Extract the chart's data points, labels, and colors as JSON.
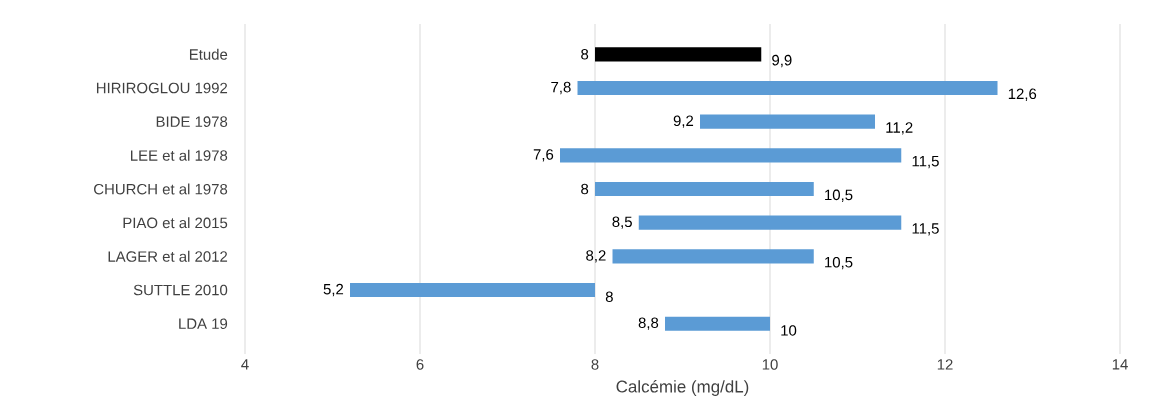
{
  "chart_data": {
    "type": "bar",
    "orientation": "horizontal",
    "xlabel": "Calcémie (mg/dL)",
    "categories": [
      "Etude",
      "HIRIROGLOU 1992",
      "BIDE 1978",
      "LEE et al 1978",
      "CHURCH et al 1978",
      "PIAO et al 2015",
      "LAGER et al 2012",
      "SUTTLE 2010",
      "LDA 19"
    ],
    "base": [
      8,
      7.8,
      9.2,
      7.6,
      8,
      8.5,
      8.2,
      5.2,
      8.8
    ],
    "values": [
      1.9,
      4.8,
      2.0,
      3.9,
      2.5,
      3.0,
      2.3,
      2.8,
      1.2
    ],
    "colors": [
      "#000000",
      "#5b9bd5",
      "#5b9bd5",
      "#5b9bd5",
      "#5b9bd5",
      "#5b9bd5",
      "#5b9bd5",
      "#5b9bd5",
      "#5b9bd5"
    ],
    "xlim": [
      4,
      14
    ],
    "xticks": [
      4,
      6,
      8,
      10,
      12,
      14
    ],
    "grid": "x",
    "annotations": [
      "8",
      "9,9",
      "7,8",
      "12,6",
      "9,2",
      "11,2",
      "7,6",
      "11,5",
      "8",
      "10,5",
      "8,5",
      "11,5",
      "8,2",
      "10,5",
      "5,2",
      "8",
      "8,8",
      "10"
    ]
  }
}
